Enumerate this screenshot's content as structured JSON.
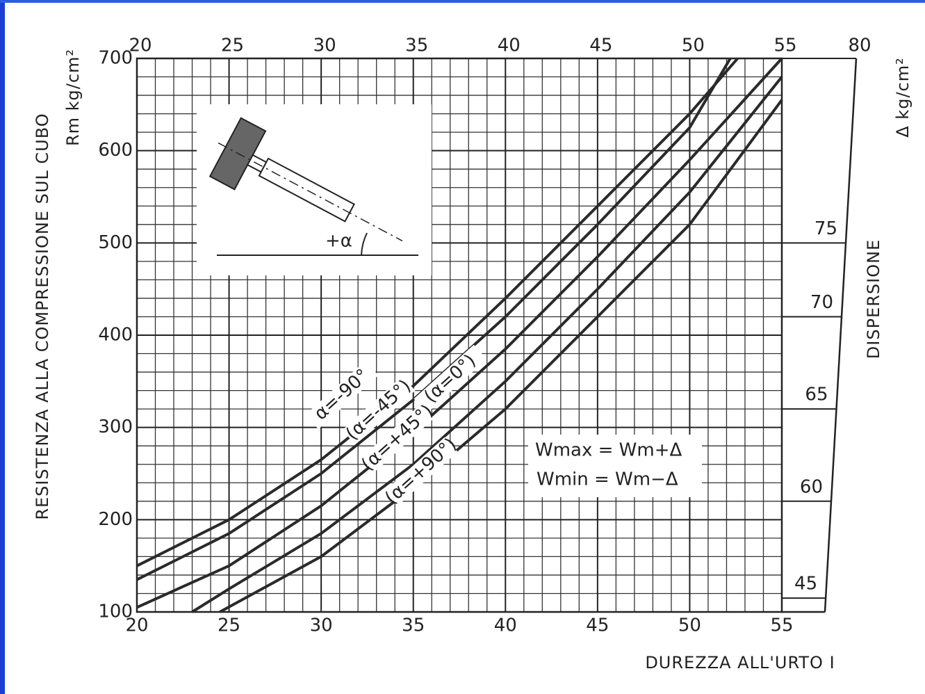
{
  "chart_data": {
    "type": "line",
    "ylabel": "RESISTENZA ALLA COMPRESSIONE SUL CUBO",
    "yunit": "Rm kg/cm²",
    "xlabel": "DUREZZA ALL'URTO I",
    "xlim": [
      20,
      55
    ],
    "xticks": [
      20,
      25,
      30,
      35,
      40,
      45,
      50,
      55
    ],
    "ylim": [
      100,
      700
    ],
    "yticks": [
      100,
      200,
      300,
      400,
      500,
      600,
      700
    ],
    "grid": true,
    "color": "#2a2a2a",
    "series": [
      {
        "name": "α=-90°",
        "x": [
          20,
          25,
          30,
          35,
          40,
          45,
          50,
          52.6
        ],
        "values": [
          150,
          200,
          265,
          345,
          440,
          540,
          640,
          700
        ]
      },
      {
        "name": "(α=-45°)",
        "x": [
          20,
          25,
          30,
          35,
          40,
          45,
          50,
          52.2
        ],
        "values": [
          135,
          185,
          250,
          330,
          420,
          520,
          625,
          700
        ]
      },
      {
        "name": "(α=0°)",
        "x": [
          20,
          25,
          30,
          35,
          40,
          45,
          50,
          55
        ],
        "values": [
          105,
          150,
          215,
          295,
          385,
          485,
          590,
          700
        ]
      },
      {
        "name": "(α=+45°)",
        "x": [
          23,
          25,
          30,
          35,
          40,
          45,
          50,
          55
        ],
        "values": [
          100,
          125,
          185,
          260,
          350,
          450,
          555,
          680
        ]
      },
      {
        "name": "(α=+90°)",
        "x": [
          24.5,
          30,
          35,
          40,
          45,
          50,
          55
        ],
        "values": [
          100,
          160,
          235,
          320,
          420,
          520,
          655
        ]
      }
    ],
    "dispersion": {
      "title": "DISPERSIONE",
      "unit": "Δ kg/cm²",
      "values": [
        45,
        60,
        65,
        70,
        75,
        80
      ],
      "rm": [
        115,
        220,
        320,
        420,
        500,
        700
      ]
    },
    "formulas": [
      "Wmax  =  Wm+Δ",
      "Wmin  =  Wm−Δ"
    ],
    "inset_label": "+α"
  }
}
